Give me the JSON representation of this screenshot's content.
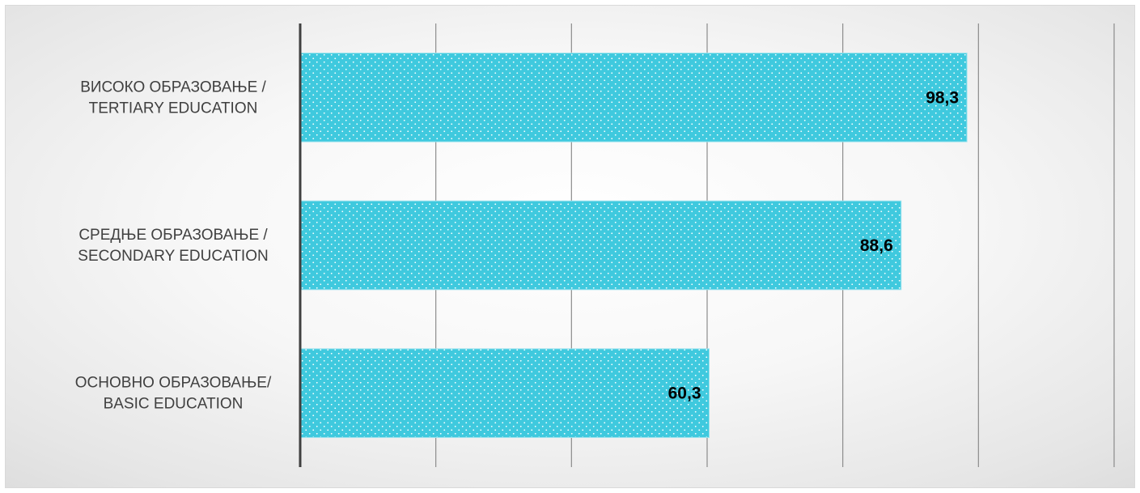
{
  "chart_data": {
    "type": "bar",
    "orientation": "horizontal",
    "categories": [
      [
        "ВИСОКО ОБРАЗОВАЊЕ /",
        "TERTIARY EDUCATION"
      ],
      [
        "СРЕДЊЕ ОБРАЗОВАЊЕ /",
        "SECONDARY EDUCATION"
      ],
      [
        "ОСНОВНО ОБРАЗОВАЊЕ/",
        "BASIC EDUCATION"
      ]
    ],
    "values": [
      98.3,
      88.6,
      60.3
    ],
    "data_labels": [
      "98,3",
      "88,6",
      "60,3"
    ],
    "xlim": [
      0,
      120
    ],
    "major_unit": 20,
    "tick_labels_shown": false,
    "grid": true,
    "legend": "none",
    "colors": {
      "bar_fill": "#3fc9de",
      "bar_dots": "#ffffff",
      "gridline": "#8c8c8c",
      "axis_line": "#404040"
    }
  }
}
